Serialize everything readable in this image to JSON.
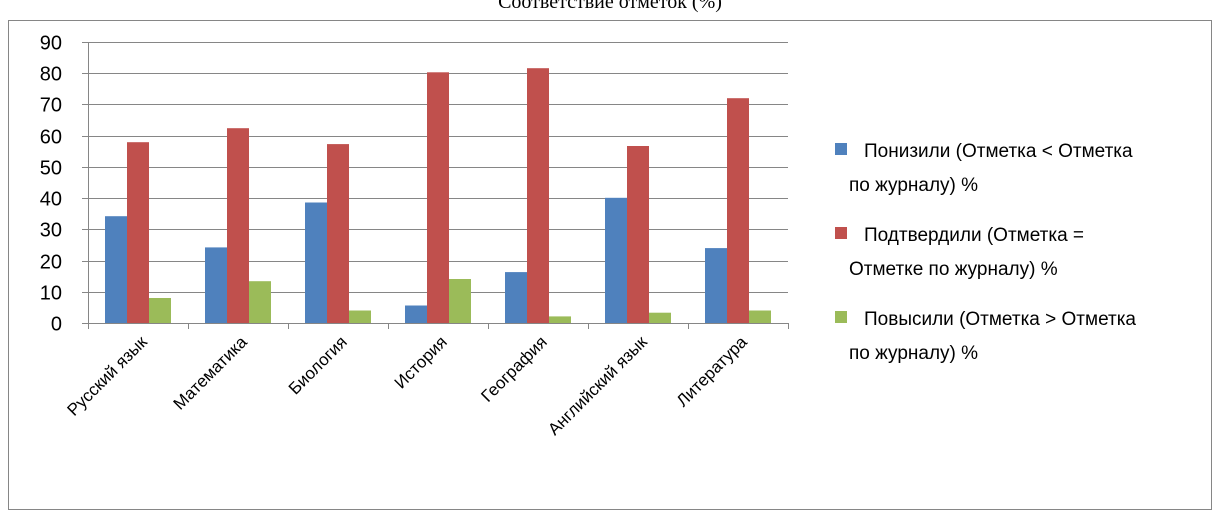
{
  "colors": {
    "series_1": "#4f81bd",
    "series_2": "#c0504d",
    "series_3": "#9bbb59",
    "grid": "#868686"
  },
  "chart_data": {
    "type": "bar",
    "title": "Соответствие отметок (%)",
    "xlabel": "",
    "ylabel": "",
    "ylim": [
      0,
      90
    ],
    "yticks": [
      0,
      10,
      20,
      30,
      40,
      50,
      60,
      70,
      80,
      90
    ],
    "grid": true,
    "legend_position": "right",
    "categories": [
      "Русский язык",
      "Математика",
      "Биология",
      "История",
      "География",
      "Английский язык",
      "Литература"
    ],
    "series": [
      {
        "name": "Понизили (Отметка < Отметка по журналу) %",
        "legend_lines": [
          "Понизили (Отметка < Отметка",
          "по журналу) %"
        ],
        "values": [
          34.2,
          24.2,
          38.6,
          5.6,
          16.3,
          40.1,
          24.0
        ]
      },
      {
        "name": "Подтвердили (Отметка = Отметке по журналу) %",
        "legend_lines": [
          "Подтвердили (Отметка =",
          "Отметке по журналу) %"
        ],
        "values": [
          57.9,
          62.4,
          57.3,
          80.3,
          81.6,
          56.7,
          72.0
        ]
      },
      {
        "name": "Повысили (Отметка > Отметка по журналу) %",
        "legend_lines": [
          "Повысили (Отметка > Отметка",
          "по журналу) %"
        ],
        "values": [
          8.0,
          13.4,
          4.0,
          14.1,
          2.1,
          3.3,
          4.0
        ]
      }
    ]
  }
}
